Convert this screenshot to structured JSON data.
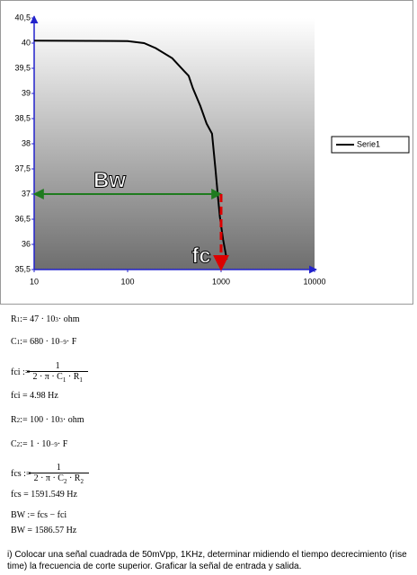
{
  "chart_data": {
    "type": "line",
    "xscale": "log",
    "x": [
      10,
      100,
      150,
      200,
      300,
      400,
      450,
      500,
      600,
      700,
      800,
      870,
      920,
      970,
      1050,
      1150
    ],
    "series": [
      {
        "name": "Serie1",
        "color": "#000000",
        "values": [
          40.05,
          40.04,
          40.0,
          39.9,
          39.7,
          39.45,
          39.35,
          39.1,
          38.75,
          38.4,
          38.2,
          37.5,
          37.0,
          36.55,
          36.1,
          35.7
        ]
      }
    ],
    "xlim": [
      10,
      10000
    ],
    "xticks": [
      10,
      100,
      1000,
      10000
    ],
    "ylim": [
      35.5,
      40.5
    ],
    "yticks": [
      {
        "value": 35.5,
        "label": "35,5"
      },
      36,
      {
        "value": 36.5,
        "label": "36,5"
      },
      37,
      {
        "value": 37.5,
        "label": "37,5"
      },
      38,
      {
        "value": 38.5,
        "label": "38,5"
      },
      39,
      {
        "value": 39.5,
        "label": "39,5"
      },
      40,
      {
        "value": 40.5,
        "label": "40,5"
      }
    ],
    "legend": "right",
    "annotations": [
      {
        "text": "Bw",
        "x": [
          10,
          1000
        ],
        "y": [
          37,
          37
        ],
        "color": "#1e7b1e"
      },
      {
        "text": "fc",
        "x": [
          1000,
          1000
        ],
        "y": [
          37,
          35.5
        ],
        "color": "#dd0000"
      }
    ]
  },
  "document": {
    "lines": [
      [
        "R",
        {
          "sub": "1"
        },
        " := 47 · 10",
        {
          "sup": "3"
        },
        " · ohm"
      ],
      [
        "C",
        {
          "sub": "1"
        },
        " := 680 · 10",
        {
          "sup": "−9"
        },
        " · F"
      ],
      [
        "fci := ",
        {
          "frac": {
            "num": [
              "1"
            ],
            "den": [
              "2 · π · C",
              {
                "sub": "1"
              },
              " · R",
              {
                "sub": "1"
              }
            ]
          }
        }
      ],
      [
        "fci = 4.98 Hz"
      ],
      [
        "R",
        {
          "sub": "2"
        },
        " := 100 · 10",
        {
          "sup": "3"
        },
        " · ohm"
      ],
      [
        "C",
        {
          "sub": "2"
        },
        " := 1 · 10",
        {
          "sup": "−9"
        },
        " · F"
      ],
      [
        "fcs := ",
        {
          "frac": {
            "num": [
              "1"
            ],
            "den": [
              "2 · π · C",
              {
                "sub": "2"
              },
              " · R",
              {
                "sub": "2"
              }
            ]
          }
        }
      ],
      [
        "fcs = 1591.549 Hz"
      ],
      [
        "BW := fcs − fci"
      ],
      [
        "BW = 1586.57 Hz"
      ]
    ],
    "paragraph": "i) Colocar una señal cuadrada de 50mVpp, 1KHz, determinar midiendo el tiempo decrecimiento (rise time) la frecuencia de corte superior. Graficar la señal de entrada y salida."
  }
}
